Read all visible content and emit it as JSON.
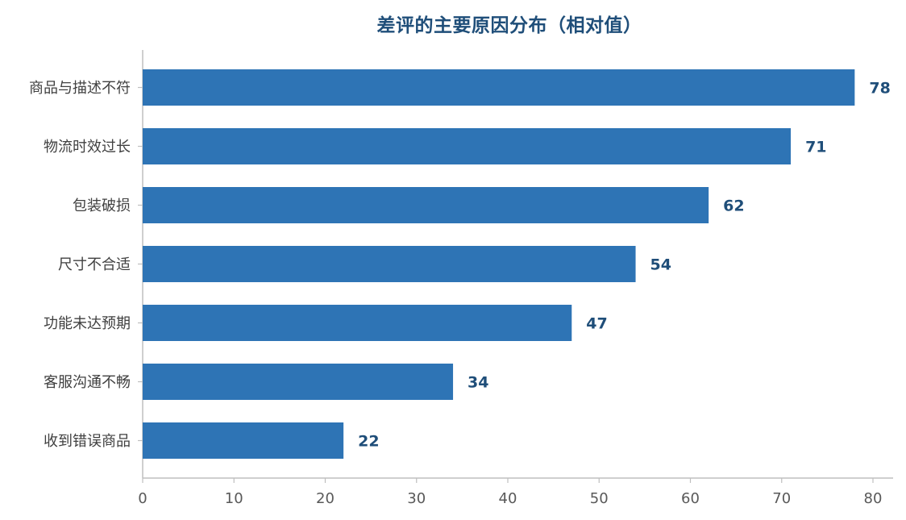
{
  "chart_data": {
    "type": "bar",
    "orientation": "horizontal",
    "title": "差评的主要原因分布（相对值）",
    "xlabel": "",
    "ylabel": "",
    "categories": [
      "商品与描述不符",
      "物流时效过长",
      "包装破损",
      "尺寸不合适",
      "功能未达预期",
      "客服沟通不畅",
      "收到错误商品"
    ],
    "values": [
      78,
      71,
      62,
      54,
      47,
      34,
      22
    ],
    "xlim": [
      0,
      80
    ],
    "xticks": [
      0,
      10,
      20,
      30,
      40,
      50,
      60,
      70,
      80
    ],
    "grid": false,
    "data_labels": true,
    "bar_color": "#2e74b5",
    "label_color": "#1f4e79"
  }
}
